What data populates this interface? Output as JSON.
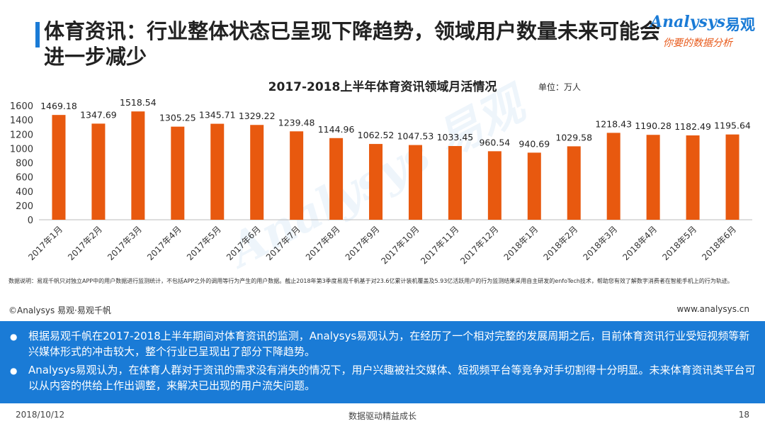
{
  "header": {
    "title": "体育资讯：行业整体状态已呈现下降趋势，领域用户数量未来可能会进一步减少"
  },
  "logo": {
    "brand": "Analysys",
    "brand_cn": "易观",
    "slogan": "你要的数据分析"
  },
  "watermark": "Analysys 易观",
  "chart_data": {
    "type": "bar",
    "title": "2017-2018上半年体育资讯领域月活情况",
    "unit": "单位：万人",
    "categories": [
      "2017年1月",
      "2017年2月",
      "2017年3月",
      "2017年4月",
      "2017年5月",
      "2017年6月",
      "2017年7月",
      "2017年8月",
      "2017年9月",
      "2017年10月",
      "2017年11月",
      "2017年12月",
      "2018年1月",
      "2018年2月",
      "2018年3月",
      "2018年4月",
      "2018年5月",
      "2018年6月"
    ],
    "values": [
      1469.18,
      1347.69,
      1518.54,
      1305.25,
      1345.71,
      1329.22,
      1239.48,
      1144.96,
      1062.52,
      1047.53,
      1033.45,
      960.54,
      940.69,
      1029.58,
      1218.43,
      1190.28,
      1182.49,
      1195.64
    ],
    "value_labels": [
      "1469.18",
      "1347.69",
      "1518.54",
      "1305.25",
      "1345.71",
      "1329.22",
      "1239.48",
      "1144.96",
      "1062.52",
      "1047.53",
      "1033.45",
      "960.54",
      "940.69",
      "1029.58",
      "1218.43",
      "1190.28",
      "1182.49",
      "1195.64"
    ],
    "yticks": [
      0,
      200,
      400,
      600,
      800,
      1000,
      1200,
      1400,
      1600
    ],
    "ylim": [
      0,
      1600
    ],
    "xlabel": "",
    "ylabel": "",
    "bar_color": "#e8590f",
    "grid": false
  },
  "data_note": "数据说明：易观千帆只对独立APP中的用户数据进行监测统计，不包括APP之外的调用等行为产生的用户数据。截止2018年第3季度易观千帆基于对23.6亿累计装机覆盖及5.93亿活跃用户的行为监测结果采用自主研发的enfoTech技术，帮助您有效了解数字消费者在智能手机上的行为轨迹。",
  "copyright": "©Analysys 易观·易观千帆",
  "website": "www.analysys.cn",
  "summary": [
    "根据易观千帆在2017-2018上半年期间对体育资讯的监测，Analysys易观认为，在经历了一个相对完整的发展周期之后，目前体育资讯行业受短视频等新兴媒体形式的冲击较大，整个行业已呈现出了部分下降趋势。",
    "Analysys易观认为，在体育人群对于资讯的需求没有消失的情况下，用户兴趣被社交媒体、短视频平台等竞争对手切割得十分明显。未来体育资讯类平台可以从内容的供给上作出调整，来解决已出现的用户流失问题。"
  ],
  "footer": {
    "date": "2018/10/12",
    "slogan": "数据驱动精益成长",
    "page": "18"
  },
  "colors": {
    "accent": "#1a7bd6",
    "bar": "#e8590f",
    "slogan": "#e85a1b"
  }
}
